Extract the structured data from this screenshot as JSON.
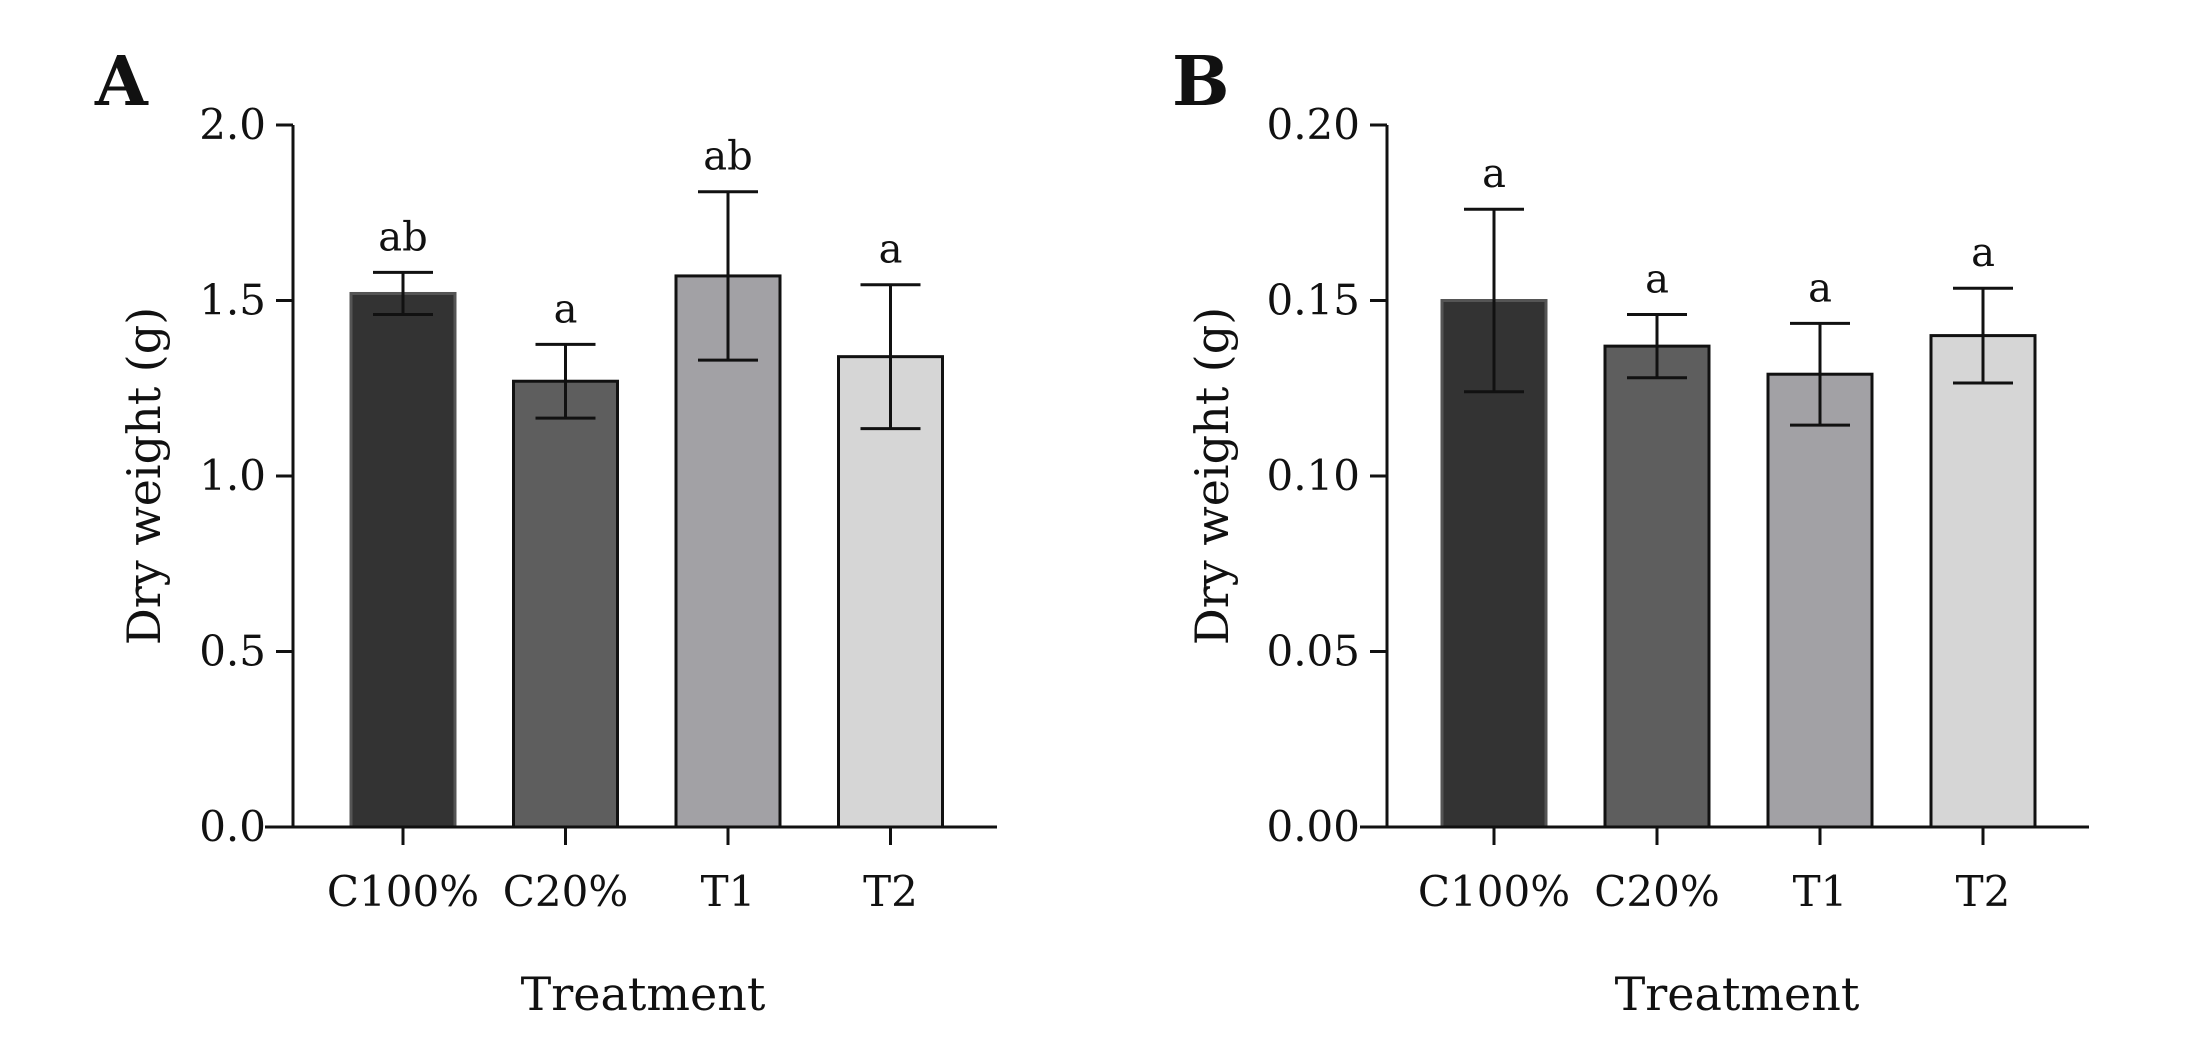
{
  "chart_data": [
    {
      "type": "bar",
      "panel_label": "A",
      "xlabel": "Treatment",
      "ylabel": "Dry weight  (g)",
      "ylim": [
        0,
        2.0
      ],
      "yticks": [
        "0.0",
        "0.5",
        "1.0",
        "1.5",
        "2.0"
      ],
      "ytick_values": [
        0,
        0.5,
        1.0,
        1.5,
        2.0
      ],
      "categories": [
        "C100%",
        "C20%",
        "T1",
        "T2"
      ],
      "values": [
        1.52,
        1.27,
        1.57,
        1.34
      ],
      "errors": [
        0.06,
        0.105,
        0.24,
        0.205
      ],
      "significance": [
        "ab",
        "a",
        "ab",
        "a"
      ],
      "colors": [
        "#333333",
        "#5e5e5e",
        "#a2a1a5",
        "#d6d6d6"
      ]
    },
    {
      "type": "bar",
      "panel_label": "B",
      "xlabel": "Treatment",
      "ylabel": "Dry weight (g)",
      "ylim": [
        0,
        0.2
      ],
      "yticks": [
        "0.00",
        "0.05",
        "0.10",
        "0.15",
        "0.20"
      ],
      "ytick_values": [
        0,
        0.05,
        0.1,
        0.15,
        0.2
      ],
      "categories": [
        "C100%",
        "C20%",
        "T1",
        "T2"
      ],
      "values": [
        0.15,
        0.137,
        0.129,
        0.14
      ],
      "errors": [
        0.026,
        0.009,
        0.0145,
        0.0135
      ],
      "significance": [
        "a",
        "a",
        "a",
        "a"
      ],
      "colors": [
        "#333333",
        "#5e5e5e",
        "#a2a1a5",
        "#d6d6d6"
      ]
    }
  ]
}
